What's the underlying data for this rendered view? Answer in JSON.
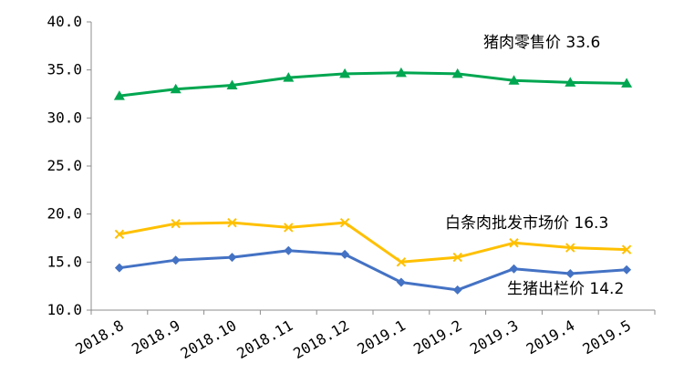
{
  "chart_data": {
    "type": "line",
    "categories": [
      "2018.8",
      "2018.9",
      "2018.10",
      "2018.11",
      "2018.12",
      "2019.1",
      "2019.2",
      "2019.3",
      "2019.4",
      "2019.5"
    ],
    "yticks": [
      "10.0",
      "15.0",
      "20.0",
      "25.0",
      "30.0",
      "35.0",
      "40.0"
    ],
    "ylim": [
      10,
      40
    ],
    "grid": false,
    "legend": "none",
    "series": [
      {
        "name": "猪肉零售价",
        "end_label": "猪肉零售价    33.6",
        "values": [
          32.3,
          33.0,
          33.4,
          34.2,
          34.6,
          34.7,
          34.6,
          33.9,
          33.7,
          33.6
        ],
        "color": "#00a650",
        "marker": "triangle"
      },
      {
        "name": "白条肉批发市场价",
        "end_label": "白条肉批发市场价 16.3",
        "values": [
          17.9,
          19.0,
          19.1,
          18.6,
          19.1,
          15.0,
          15.5,
          17.0,
          16.5,
          16.3
        ],
        "color": "#ffc000",
        "marker": "x"
      },
      {
        "name": "生猪出栏价",
        "end_label": "生猪出栏价 14.2",
        "values": [
          14.4,
          15.2,
          15.5,
          16.2,
          15.8,
          12.9,
          12.1,
          14.3,
          13.8,
          14.2
        ],
        "color": "#4472c4",
        "marker": "diamond"
      }
    ]
  }
}
